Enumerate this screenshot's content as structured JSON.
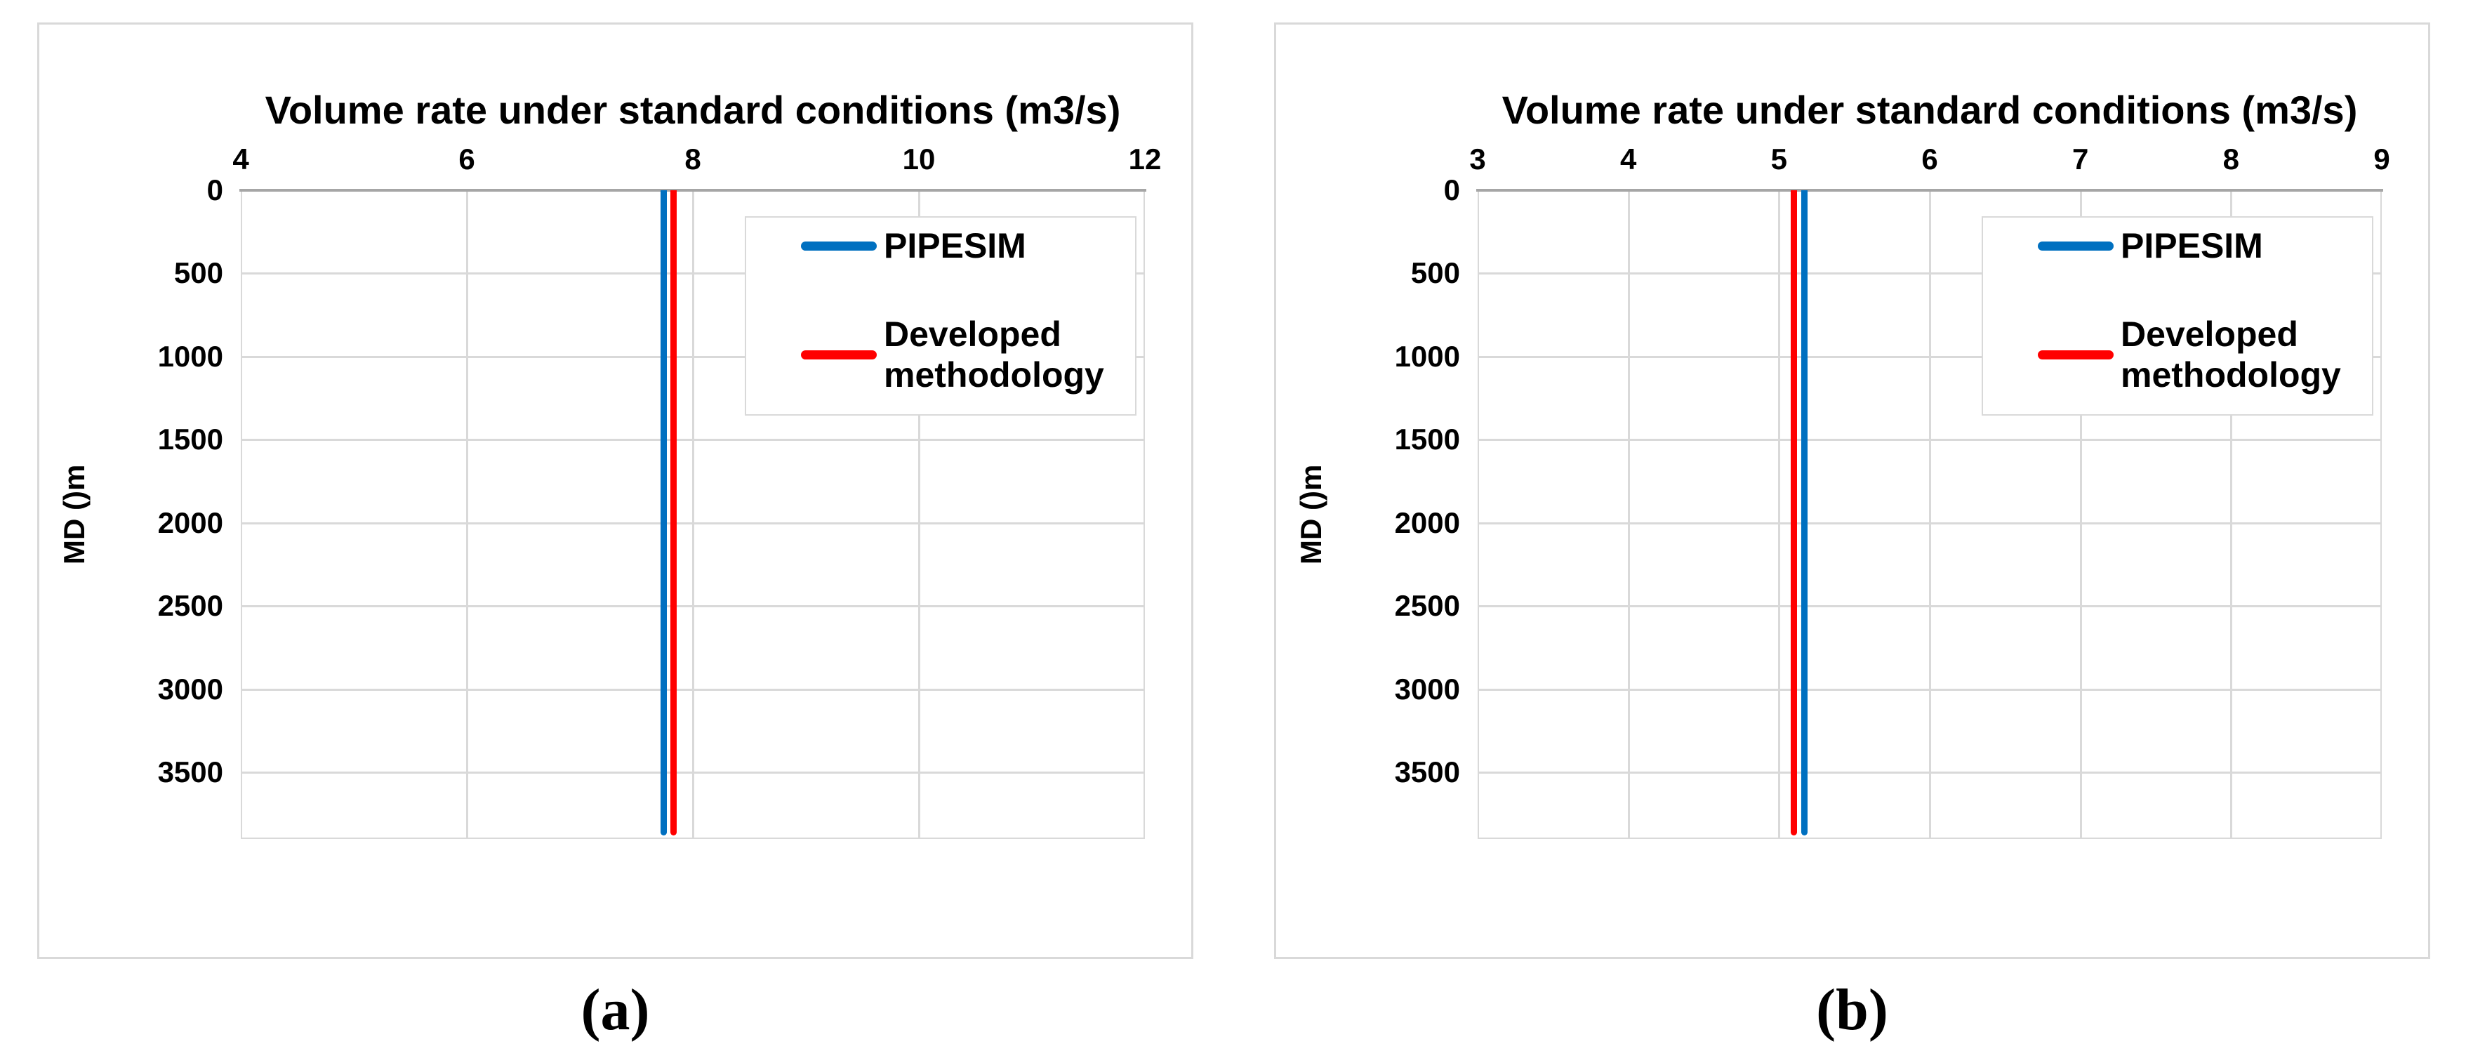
{
  "page": {
    "type": "two-panel-figure",
    "background": "#ffffff"
  },
  "chart_data": [
    {
      "panel": "a",
      "caption": "(a)",
      "type": "line",
      "title": "Volume rate under standard conditions (m3/s)",
      "x_axis": {
        "side": "top",
        "min": 4,
        "max": 12,
        "tick_step": 2,
        "ticks": [
          4,
          6,
          8,
          10,
          12
        ]
      },
      "y_axis": {
        "label": "MD ()m",
        "min": 0,
        "max": 3900,
        "tick_step": 500,
        "ticks": [
          0,
          500,
          1000,
          1500,
          2000,
          2500,
          3000,
          3500
        ],
        "direction": "downward"
      },
      "grid": true,
      "legend": {
        "position": "upper-right",
        "entries": [
          "PIPESIM",
          "Developed methodology"
        ]
      },
      "series": [
        {
          "name": "PIPESIM",
          "color": "#0070C0",
          "shape": "vertical-line",
          "x_value": 7.74,
          "y_from": 0,
          "y_to": 3880
        },
        {
          "name": "Developed methodology",
          "color": "#FF0000",
          "shape": "vertical-line",
          "x_value": 7.83,
          "y_from": 0,
          "y_to": 3880
        }
      ]
    },
    {
      "panel": "b",
      "caption": "(b)",
      "type": "line",
      "title": "Volume rate under standard conditions (m3/s)",
      "x_axis": {
        "side": "top",
        "min": 3,
        "max": 9,
        "tick_step": 1,
        "ticks": [
          3,
          4,
          5,
          6,
          7,
          8,
          9
        ]
      },
      "y_axis": {
        "label": "MD ()m",
        "min": 0,
        "max": 3900,
        "tick_step": 500,
        "ticks": [
          0,
          500,
          1000,
          1500,
          2000,
          2500,
          3000,
          3500
        ],
        "direction": "downward"
      },
      "grid": true,
      "legend": {
        "position": "upper-right",
        "entries": [
          "PIPESIM",
          "Developed methodology"
        ]
      },
      "series": [
        {
          "name": "PIPESIM",
          "color": "#0070C0",
          "shape": "vertical-line",
          "x_value": 5.17,
          "y_from": 0,
          "y_to": 3880
        },
        {
          "name": "Developed methodology",
          "color": "#FF0000",
          "shape": "vertical-line",
          "x_value": 5.1,
          "y_from": 0,
          "y_to": 3880
        }
      ]
    }
  ],
  "colors": {
    "pipesim_line": "#0070C0",
    "developed_line": "#FF0000",
    "gridline": "#D9D9D9",
    "axis_line": "#A6A6A6",
    "panel_border": "#D9D9D9",
    "text": "#000000"
  }
}
